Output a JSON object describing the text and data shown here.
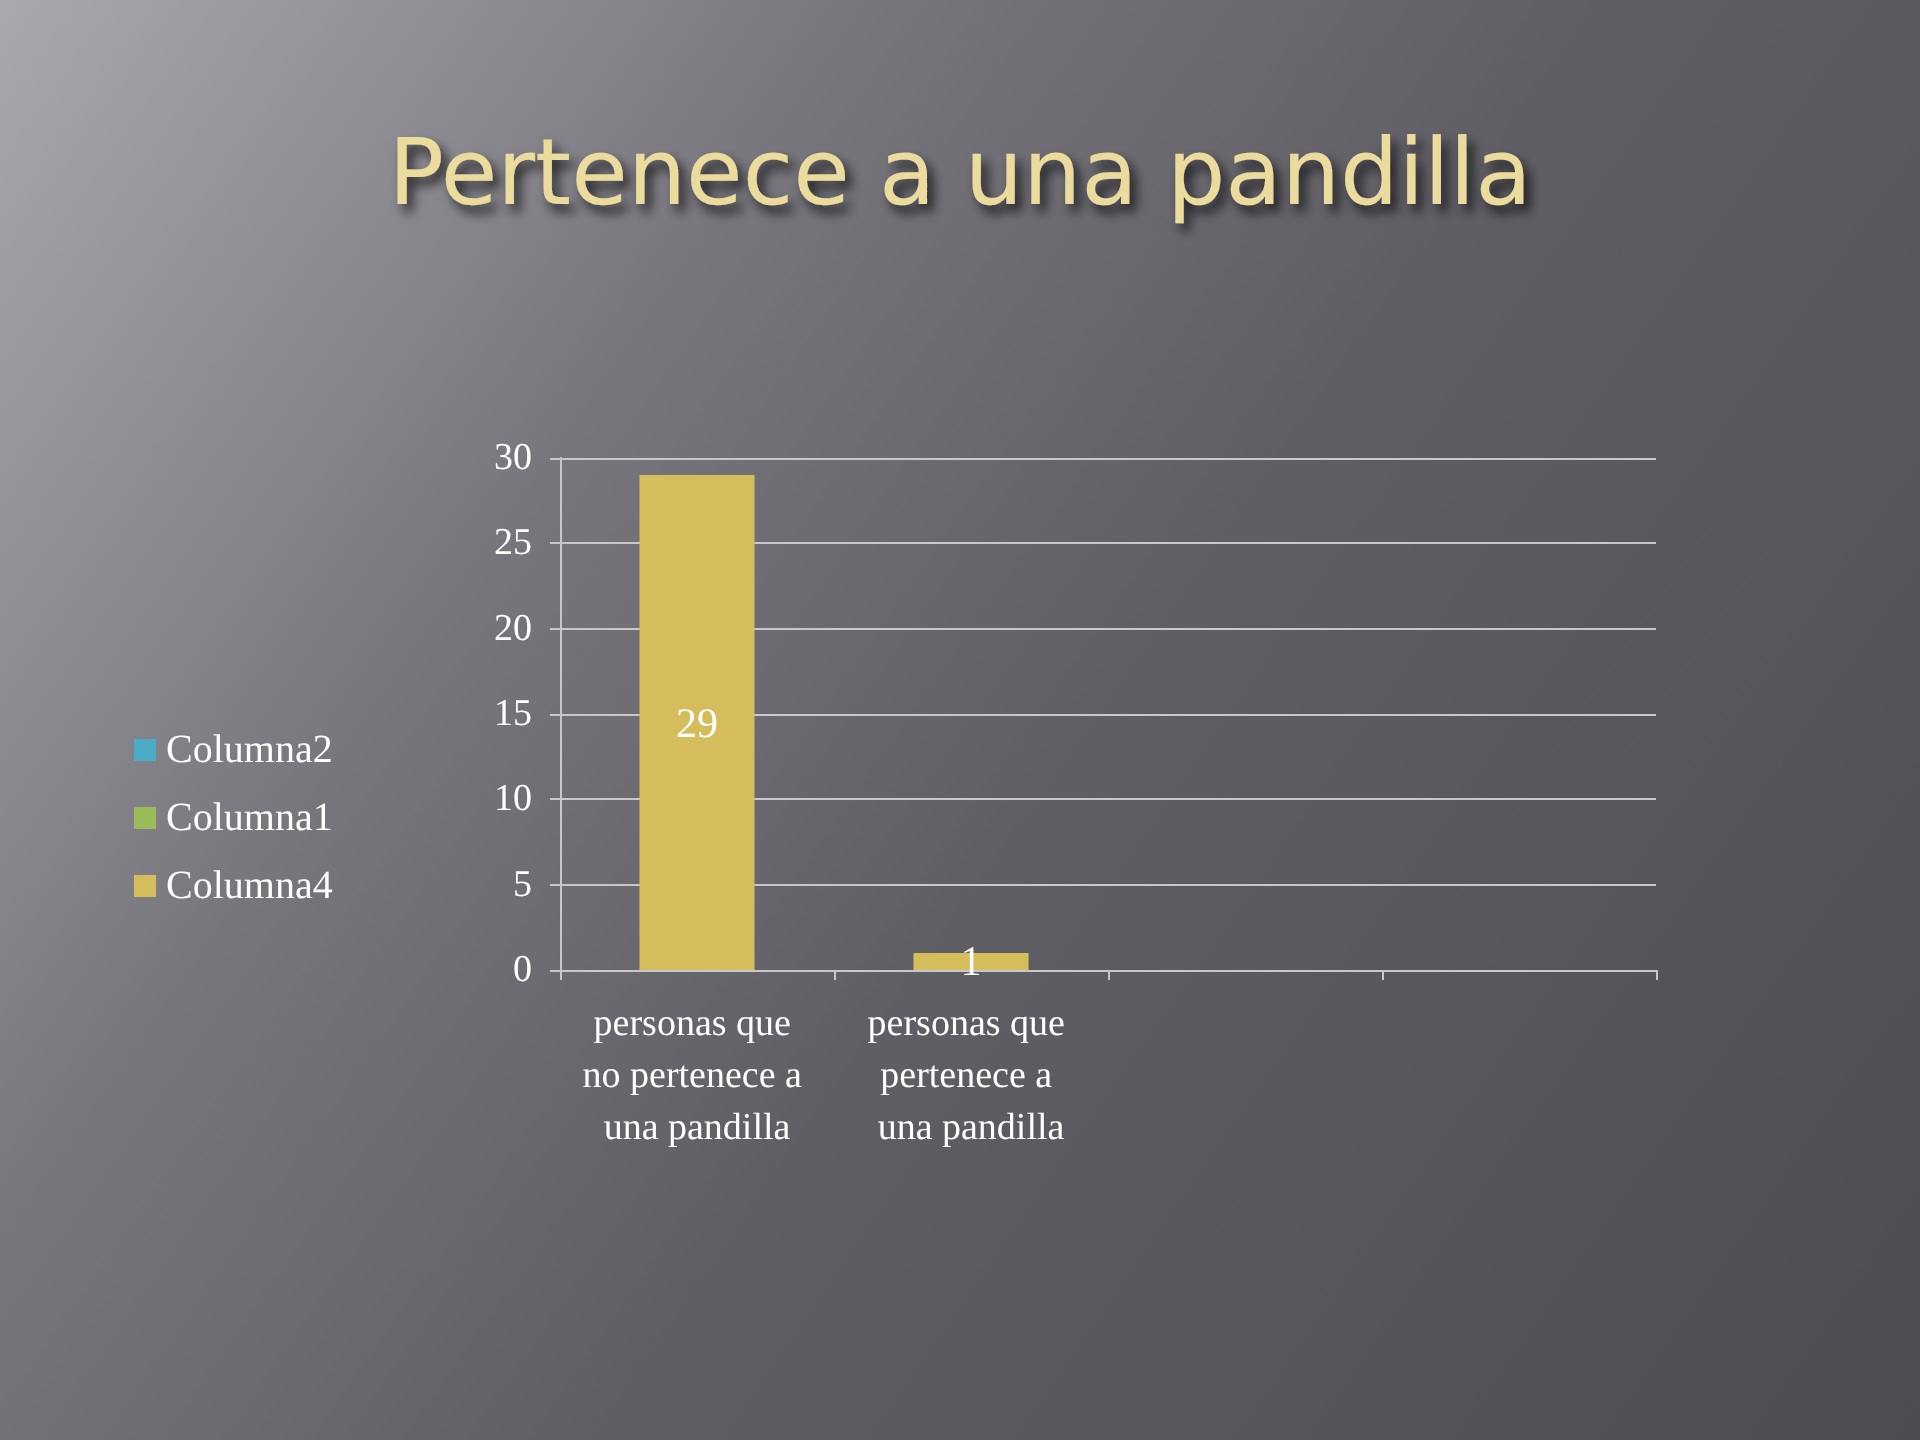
{
  "chart_data": {
    "type": "bar",
    "title": "Pertenece a una pandilla",
    "categories": [
      "personas que no pertenece a una pandilla",
      "personas que pertenece a una pandilla",
      null,
      null
    ],
    "series": [
      {
        "name": "Columna2",
        "color": "#4bacc6",
        "values": [
          null,
          null,
          null,
          null
        ]
      },
      {
        "name": "Columna1",
        "color": "#9bbb59",
        "values": [
          null,
          null,
          null,
          null
        ]
      },
      {
        "name": "Columna4",
        "color": "#d4bd5a",
        "values": [
          29,
          1,
          null,
          null
        ]
      }
    ],
    "ylim": [
      0,
      30
    ],
    "yticks": [
      0,
      5,
      10,
      15,
      20,
      25,
      30
    ],
    "grid": "y",
    "legend": "left",
    "data_labels": true
  }
}
